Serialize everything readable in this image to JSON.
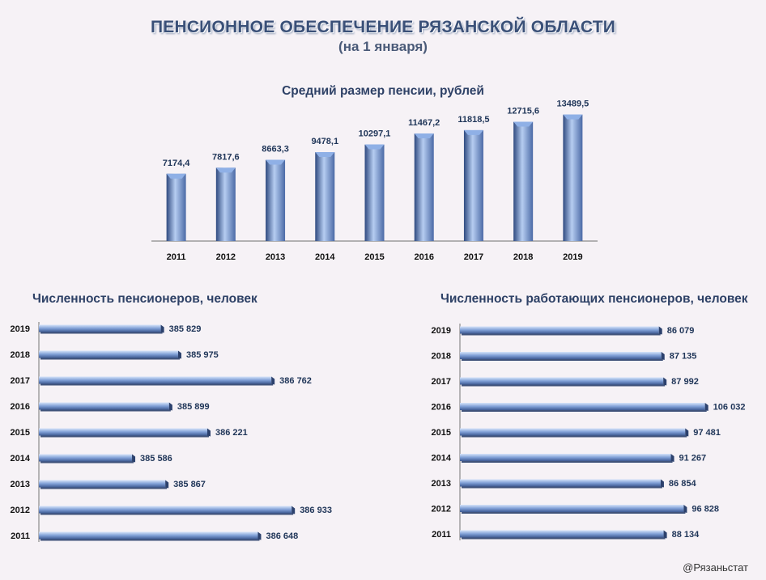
{
  "header": {
    "title": "ПЕНСИОННОЕ ОБЕСПЕЧЕНИЕ РЯЗАНСКОЙ ОБЛАСТИ",
    "subtitle": "(на 1 января)"
  },
  "credit": "@Рязаньстат",
  "colors": {
    "bar": "#7f9fd6",
    "bar_dark": "#3e5a92",
    "label": "#1f3558"
  },
  "chart_data": [
    {
      "type": "bar",
      "title": "Средний размер пенсии, рублей",
      "categories": [
        "2011",
        "2012",
        "2013",
        "2014",
        "2015",
        "2016",
        "2017",
        "2018",
        "2019"
      ],
      "values": [
        7174.4,
        7817.6,
        8663.3,
        9478.1,
        10297.1,
        11467.2,
        11818.5,
        12715.6,
        13489.5
      ],
      "labels": [
        "7174,4",
        "7817,6",
        "8663,3",
        "9478,1",
        "10297,1",
        "11467,2",
        "11818,5",
        "12715,6",
        "13489,5"
      ],
      "ylim": [
        0,
        15000
      ],
      "grid": false
    },
    {
      "type": "bar",
      "orientation": "horizontal",
      "title": "Численность пенсионеров, человек",
      "categories": [
        "2019",
        "2018",
        "2017",
        "2016",
        "2015",
        "2014",
        "2013",
        "2012",
        "2011"
      ],
      "values": [
        385829,
        385975,
        386762,
        385899,
        386221,
        385586,
        385867,
        386933,
        386648
      ],
      "labels": [
        "385 829",
        "385 975",
        "386 762",
        "385 899",
        "386 221",
        "385 586",
        "385 867",
        "386 933",
        "386 648"
      ],
      "xlim": [
        384800,
        387000
      ],
      "grid": false
    },
    {
      "type": "bar",
      "orientation": "horizontal",
      "title": "Численность работающих пенсионеров, человек",
      "categories": [
        "2019",
        "2018",
        "2017",
        "2016",
        "2015",
        "2014",
        "2013",
        "2012",
        "2011"
      ],
      "values": [
        86079,
        87135,
        87992,
        106032,
        97481,
        91267,
        86854,
        96828,
        88134
      ],
      "labels": [
        "86 079",
        "87 135",
        "87 992",
        "106 032",
        "97 481",
        "91 267",
        "86 854",
        "96 828",
        "88 134"
      ],
      "xlim": [
        0,
        110000
      ],
      "grid": false
    }
  ]
}
